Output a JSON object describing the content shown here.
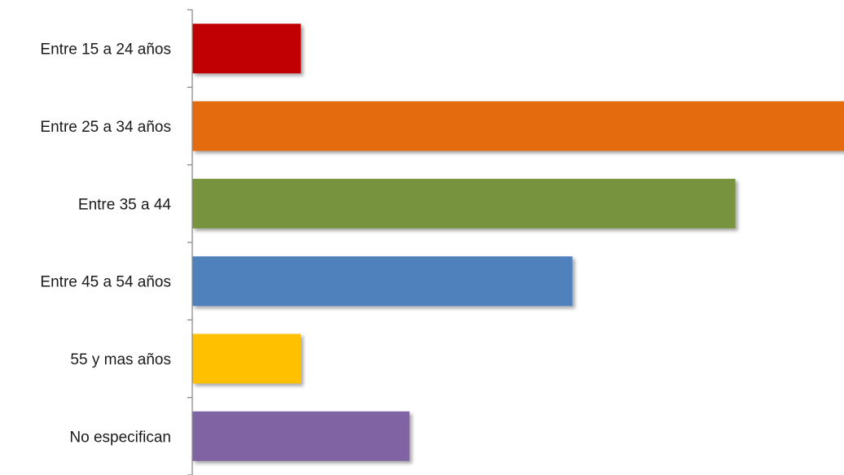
{
  "chart_data": {
    "type": "bar",
    "orientation": "horizontal",
    "title": "",
    "xlabel": "",
    "ylabel": "",
    "categories": [
      "Entre 15 a 24 años",
      "Entre 25 a 34 años",
      "Entre 35 a 44",
      "Entre 45 a 54 años",
      "55 y mas años",
      "No especifican"
    ],
    "values": [
      2,
      12,
      10,
      7,
      2,
      4
    ],
    "colors": [
      "#C00000",
      "#E46C0A",
      "#77933C",
      "#4F81BD",
      "#FFC000",
      "#8064A2"
    ],
    "xlim": [
      0,
      12
    ],
    "grid": false,
    "legend": "none",
    "bar_shadow": true
  }
}
